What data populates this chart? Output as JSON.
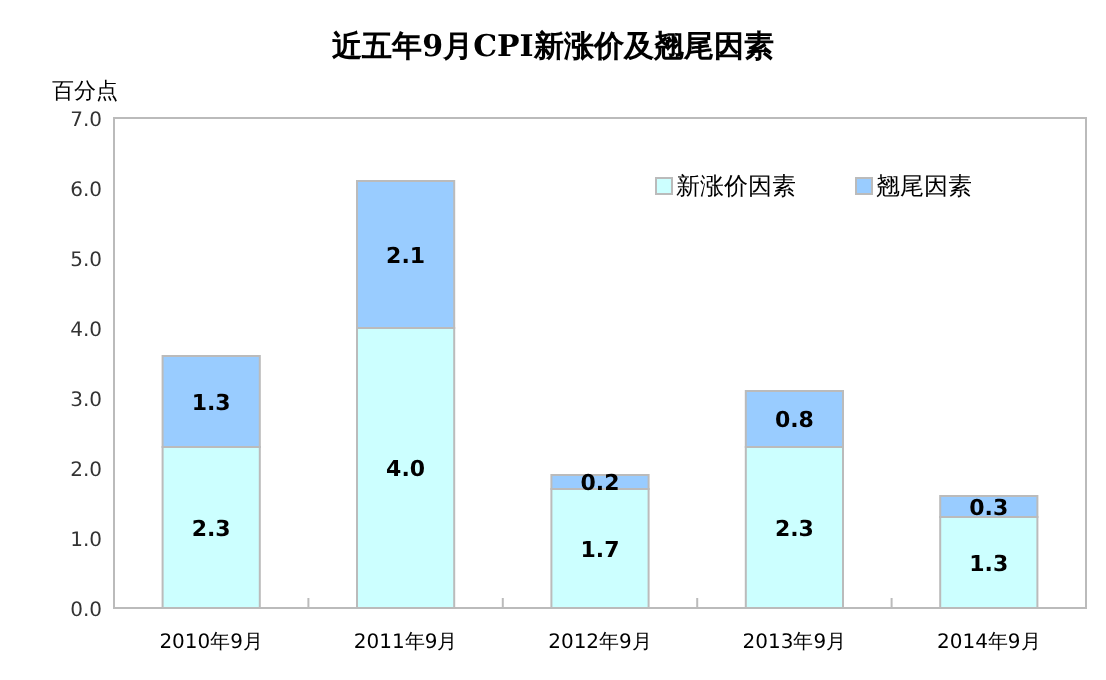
{
  "chart_data": {
    "type": "bar",
    "title": "近五年9月CPI新涨价及翘尾因素",
    "ylabel": "百分点",
    "categories": [
      "2010年9月",
      "2011年9月",
      "2012年9月",
      "2013年9月",
      "2014年9月"
    ],
    "series": [
      {
        "name": "新涨价因素",
        "color": "#ccffff",
        "values": [
          2.3,
          4.0,
          1.7,
          2.3,
          1.3
        ],
        "value_labels": [
          "2.3",
          "4.0",
          "1.7",
          "2.3",
          "1.3"
        ]
      },
      {
        "name": "翘尾因素",
        "color": "#99ccff",
        "values": [
          1.3,
          2.1,
          0.2,
          0.8,
          0.3
        ],
        "value_labels": [
          "1.3",
          "2.1",
          "0.2",
          "0.8",
          "0.3"
        ]
      }
    ],
    "stacked": true,
    "legend": "top right",
    "grid": false,
    "ylim": [
      0,
      7
    ],
    "yticks": [
      {
        "value": 0,
        "label": "0.0"
      },
      {
        "value": 1,
        "label": "1.0"
      },
      {
        "value": 2,
        "label": "2.0"
      },
      {
        "value": 3,
        "label": "3.0"
      },
      {
        "value": 4,
        "label": "4.0"
      },
      {
        "value": 5,
        "label": "5.0"
      },
      {
        "value": 6,
        "label": "6.0"
      },
      {
        "value": 7,
        "label": "7.0"
      }
    ]
  }
}
